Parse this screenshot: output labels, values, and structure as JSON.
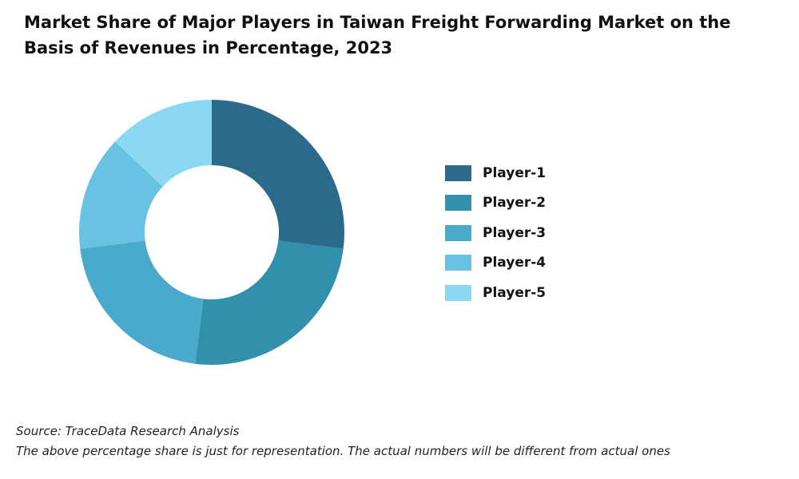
{
  "chart_data": {
    "type": "pie",
    "title": "Market Share of Major Players in Taiwan Freight Forwarding Market on the Basis of Revenues in Percentage, 2023",
    "categories": [
      "Player-1",
      "Player-2",
      "Player-3",
      "Player-4",
      "Player-5"
    ],
    "values": [
      27,
      25,
      21,
      14,
      13
    ],
    "colors": [
      "#2b6a8b",
      "#3190ab",
      "#4aaacb",
      "#67c2e4",
      "#8ad8f2"
    ],
    "donut": true,
    "legend": "right"
  },
  "footer": {
    "source": "Source: TraceData Research Analysis",
    "note": "The above percentage share is just for representation. The actual numbers will be different from actual ones"
  }
}
